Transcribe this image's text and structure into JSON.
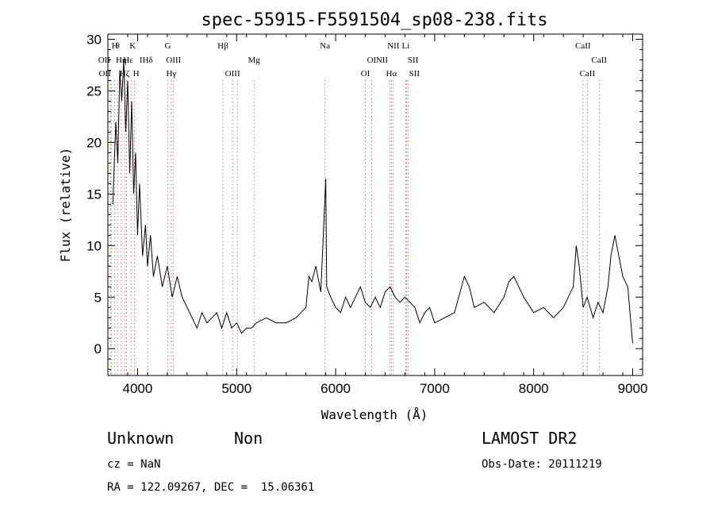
{
  "chart_data": {
    "type": "line",
    "title": "spec-55915-F5591504_sp08-238.fits",
    "xlabel": "Wavelength (Å)",
    "ylabel": "Flux (relative)",
    "xlim": [
      3700,
      9100
    ],
    "ylim": [
      -2.6,
      30.5
    ],
    "x_ticks": [
      4000,
      5000,
      6000,
      7000,
      8000,
      9000
    ],
    "y_ticks": [
      0,
      5,
      10,
      15,
      20,
      25,
      30
    ],
    "grid": false,
    "series": [
      {
        "x": [
          3750,
          3780,
          3800,
          3820,
          3840,
          3860,
          3880,
          3900,
          3920,
          3940,
          3960,
          3980,
          4000,
          4020,
          4050,
          4080,
          4100,
          4130,
          4160,
          4200,
          4250,
          4300,
          4350,
          4400,
          4450,
          4500,
          4550,
          4600,
          4650,
          4700,
          4750,
          4800,
          4850,
          4900,
          4950,
          5000,
          5050,
          5100,
          5150,
          5200,
          5300,
          5400,
          5500,
          5600,
          5700,
          5730,
          5760,
          5800,
          5850,
          5900,
          5910,
          5950,
          6000,
          6050,
          6100,
          6150,
          6200,
          6250,
          6300,
          6350,
          6400,
          6450,
          6500,
          6550,
          6600,
          6650,
          6700,
          6750,
          6800,
          6850,
          6900,
          6950,
          7000,
          7100,
          7200,
          7300,
          7350,
          7400,
          7500,
          7600,
          7700,
          7750,
          7800,
          7900,
          8000,
          8100,
          8200,
          8300,
          8400,
          8430,
          8460,
          8500,
          8540,
          8600,
          8650,
          8700,
          8750,
          8780,
          8820,
          8860,
          8900,
          8950,
          9000
        ],
        "y": [
          14,
          22,
          18,
          27,
          24,
          28,
          21,
          26,
          17,
          24,
          15,
          19,
          11,
          16,
          9,
          12,
          8,
          11,
          7,
          9,
          6,
          8,
          5,
          7,
          5,
          4,
          3,
          2,
          3.5,
          2.5,
          3,
          3.5,
          2,
          3.5,
          2,
          2.5,
          1.5,
          2,
          2,
          2.5,
          3,
          2.5,
          2.5,
          3,
          4,
          7,
          6.5,
          8,
          5.5,
          16.5,
          6,
          5,
          4,
          3.5,
          5,
          4,
          5,
          6,
          4.5,
          4,
          5,
          4,
          5.5,
          6,
          5,
          4.5,
          5,
          4.5,
          4,
          2.5,
          3.5,
          4,
          2.5,
          3,
          3.5,
          7,
          6,
          4,
          4.5,
          3.5,
          5,
          6.5,
          7,
          5,
          3.5,
          4,
          3,
          4,
          6,
          10,
          8,
          4,
          5,
          3,
          4.5,
          3.5,
          6,
          9,
          11,
          9,
          7,
          6,
          0.5
        ]
      }
    ],
    "line_markers": [
      {
        "x": 3727,
        "row": 2,
        "label": "OII",
        "dx": -8
      },
      {
        "x": 3733,
        "row": 3,
        "label": "OII",
        "dx": -8
      },
      {
        "x": 3770,
        "row": 1,
        "label": "H",
        "dx": 0
      },
      {
        "x": 3797,
        "row": 1,
        "label": "θ",
        "dx": 0
      },
      {
        "x": 3835,
        "row": 2,
        "label": "Hη",
        "dx": 0
      },
      {
        "x": 3869,
        "row": 3,
        "label": "Hζ",
        "dx": 0
      },
      {
        "x": 3889,
        "row": 2,
        "label": "Hε",
        "dx": 2
      },
      {
        "x": 3934,
        "row": 1,
        "label": "K",
        "dx": 2
      },
      {
        "x": 3969,
        "row": 3,
        "label": "H",
        "dx": 2
      },
      {
        "x": 3970,
        "row": 2,
        "label": "I",
        "dx": 8
      },
      {
        "x": 4102,
        "row": 2,
        "label": "Hδ",
        "dx": 0
      },
      {
        "x": 4305,
        "row": 1,
        "label": "G",
        "dx": 0
      },
      {
        "x": 4340,
        "row": 3,
        "label": "Hγ",
        "dx": 0
      },
      {
        "x": 4363,
        "row": 2,
        "label": "OIII",
        "dx": 0
      },
      {
        "x": 4861,
        "row": 1,
        "label": "Hβ",
        "dx": 0
      },
      {
        "x": 4959,
        "row": 3,
        "label": "OIII",
        "dx": 0
      },
      {
        "x": 5007,
        "row": 3,
        "label": "",
        "dx": 0
      },
      {
        "x": 5175,
        "row": 2,
        "label": "Mg",
        "dx": 0
      },
      {
        "x": 5893,
        "row": 1,
        "label": "Na",
        "dx": 0
      },
      {
        "x": 6300,
        "row": 3,
        "label": "OI",
        "dx": 0
      },
      {
        "x": 6363,
        "row": 2,
        "label": "OI",
        "dx": 0
      },
      {
        "x": 6548,
        "row": 2,
        "label": "NII",
        "dx": -10
      },
      {
        "x": 6563,
        "row": 3,
        "label": "Hα",
        "dx": 0
      },
      {
        "x": 6583,
        "row": 1,
        "label": "NII",
        "dx": 0
      },
      {
        "x": 6708,
        "row": 1,
        "label": "Li",
        "dx": 0
      },
      {
        "x": 6717,
        "row": 2,
        "label": "SII",
        "dx": 8
      },
      {
        "x": 6731,
        "row": 3,
        "label": "SII",
        "dx": 8
      },
      {
        "x": 8498,
        "row": 1,
        "label": "CaII",
        "dx": 0
      },
      {
        "x": 8542,
        "row": 3,
        "label": "CaII",
        "dx": 0
      },
      {
        "x": 8662,
        "row": 2,
        "label": "CaII",
        "dx": 0
      }
    ]
  },
  "info": {
    "class": "Unknown",
    "subclass": "Non",
    "cz": "cz = NaN",
    "coords": "RA = 122.09267, DEC =  15.06361",
    "survey": "LAMOST DR2",
    "obsdate": "Obs-Date: 20111219"
  }
}
